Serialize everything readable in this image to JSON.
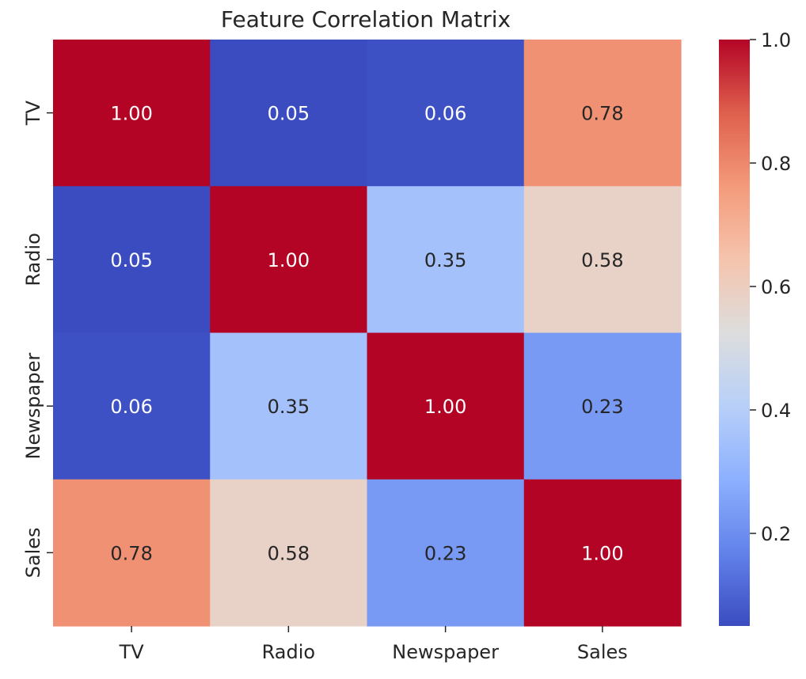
{
  "chart_data": {
    "type": "heatmap",
    "title": "Feature Correlation Matrix",
    "xlabel": "",
    "ylabel": "",
    "rows": [
      "TV",
      "Radio",
      "Newspaper",
      "Sales"
    ],
    "columns": [
      "TV",
      "Radio",
      "Newspaper",
      "Sales"
    ],
    "values": [
      [
        1.0,
        0.05,
        0.06,
        0.78
      ],
      [
        0.05,
        1.0,
        0.35,
        0.58
      ],
      [
        0.06,
        0.35,
        1.0,
        0.23
      ],
      [
        0.78,
        0.58,
        0.23,
        1.0
      ]
    ],
    "value_format": "2 decimals",
    "colormap": "coolwarm",
    "color_range": [
      0.05,
      1.0
    ],
    "colorbar": {
      "position": "right",
      "ticks": [
        0.2,
        0.4,
        0.6,
        0.8,
        1.0
      ],
      "tick_labels": [
        "0.2",
        "0.4",
        "0.6",
        "0.8",
        "1.0"
      ]
    },
    "grid": false
  }
}
